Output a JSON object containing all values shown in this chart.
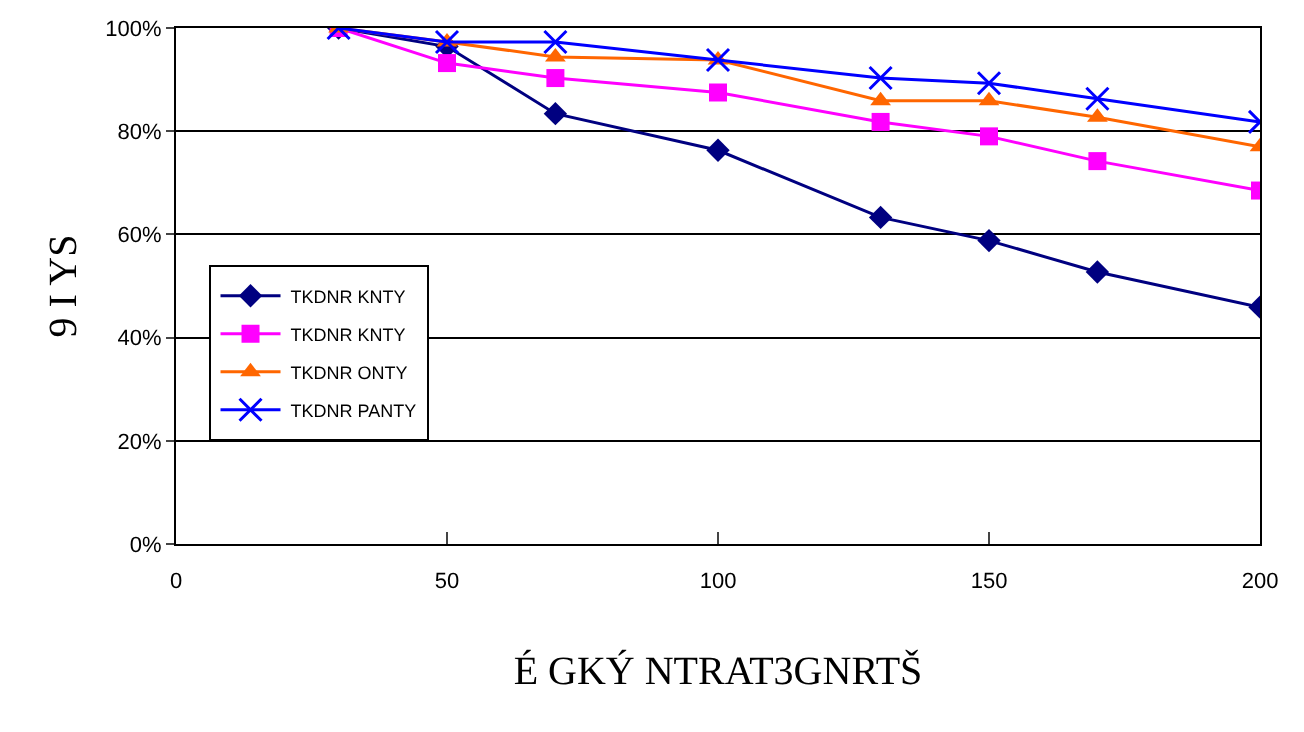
{
  "chart_data": {
    "type": "line",
    "xlabel": "É GKÝ NTRAT3GNRTŠ",
    "ylabel": "9 I YS",
    "x": [
      30,
      50,
      70,
      100,
      130,
      150,
      170,
      200
    ],
    "series": [
      {
        "name": "TKDNR KNTY",
        "color": "#000080",
        "marker": "diamond",
        "values": [
          100,
          96.4,
          83.4,
          76.3,
          63.3,
          58.8,
          52.7,
          45.9
        ]
      },
      {
        "name": "TKDNR KNTY",
        "color": "#ff00ff",
        "marker": "square",
        "values": [
          100,
          93.2,
          90.3,
          87.5,
          81.8,
          79.0,
          74.2,
          68.5
        ]
      },
      {
        "name": "TKDNR ONTY",
        "color": "#ff6600",
        "marker": "triangle",
        "values": [
          100,
          97.3,
          94.4,
          93.8,
          85.9,
          85.9,
          82.7,
          77.0
        ]
      },
      {
        "name": "TKDNR PANTY",
        "color": "#0000ff",
        "marker": "cross",
        "values": [
          100,
          97.3,
          97.3,
          93.8,
          90.3,
          89.3,
          86.3,
          81.8
        ]
      }
    ],
    "xlim": [
      0,
      200
    ],
    "xticks": [
      0,
      50,
      100,
      150,
      200
    ],
    "ylim": [
      0,
      100
    ],
    "yticks": [
      {
        "value": 0,
        "label": "0%"
      },
      {
        "value": 20,
        "label": "20%"
      },
      {
        "value": 40,
        "label": "40%"
      },
      {
        "value": 60,
        "label": "60%"
      },
      {
        "value": 80,
        "label": "80%"
      },
      {
        "value": 100,
        "label": "100%"
      }
    ],
    "grid": "y",
    "legend": "left",
    "line_style": "solid"
  }
}
